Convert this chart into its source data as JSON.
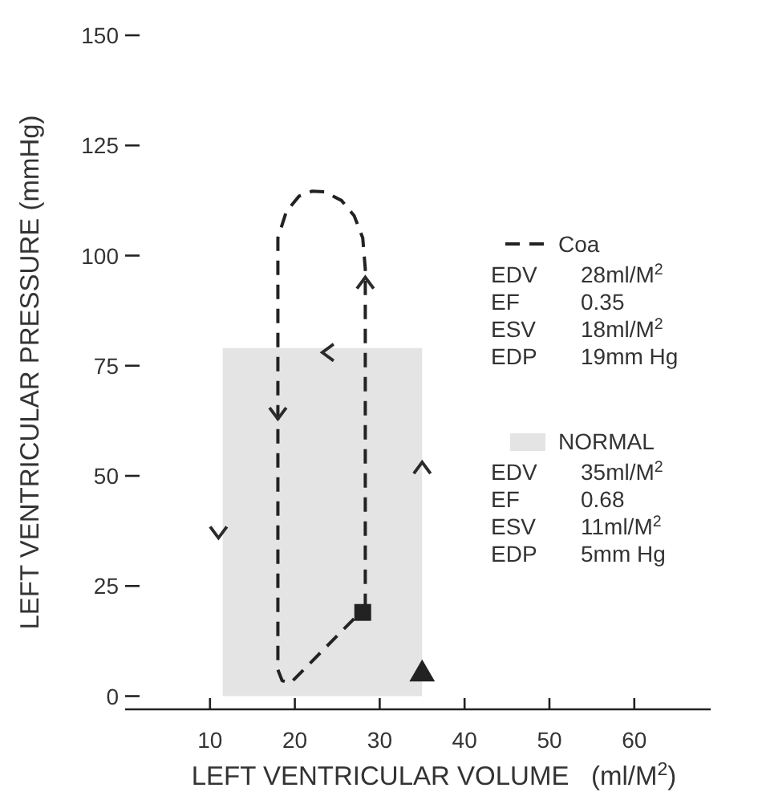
{
  "chart_data": {
    "type": "line",
    "xlabel": "LEFT VENTRICULAR VOLUME   (ml/M$^{2}$)",
    "ylabel": "LEFT VENTRICULAR PRESSURE (mmHg)",
    "xlim": [
      0,
      69
    ],
    "ylim": [
      -3,
      150
    ],
    "xticks": [
      10,
      20,
      30,
      40,
      50,
      60
    ],
    "yticks": [
      0,
      25,
      50,
      75,
      100,
      125,
      150
    ],
    "grid": false,
    "legend": "right",
    "series": [
      {
        "name": "NORMAL",
        "type": "area",
        "color": "#e4e4e4",
        "x": [
          11.5,
          35
        ],
        "values": [
          79,
          79
        ]
      },
      {
        "name": "Coa",
        "type": "line",
        "color": "#222222",
        "line_style": "dashed",
        "x": [
          28.3,
          28.3,
          28.3,
          28,
          27,
          25.5,
          23.5,
          22,
          20.5,
          19,
          18,
          18,
          18,
          18.5,
          19.5,
          27.2
        ],
        "values": [
          20,
          60,
          97,
          104,
          109,
          112.5,
          114.5,
          114.6,
          113.5,
          110,
          104,
          60,
          6,
          3.5,
          3,
          18
        ]
      },
      {
        "type": "scatter",
        "color": "#222222",
        "marker": "square",
        "x": [
          28
        ],
        "values": [
          19
        ]
      },
      {
        "type": "scatter",
        "color": "#222222",
        "marker": "triangle",
        "x": [
          35
        ],
        "values": [
          5
        ]
      }
    ],
    "annotations": [
      "EDV 28ml/M$^{2}$",
      "EF 0.35",
      "ESV 18ml/M$^{2}$",
      "EDP 19mm Hg",
      "EDV 35ml/M$^{2}$",
      "EF 0.68",
      "ESV 11ml/M$^{2}$",
      "EDP 5mm Hg"
    ]
  }
}
